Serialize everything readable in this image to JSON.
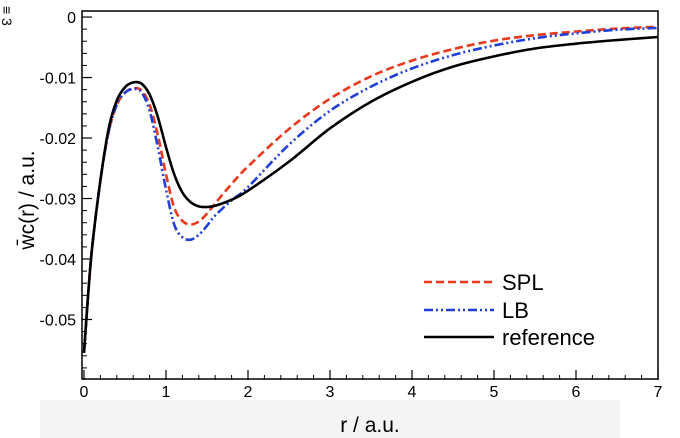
{
  "chart_data": {
    "type": "line",
    "xlabel": "r / a.u.",
    "ylabel": "w̄c(r) / a.u.",
    "xlim": [
      0,
      7
    ],
    "ylim": [
      -0.06,
      0.001
    ],
    "xticks": [
      0,
      1,
      2,
      3,
      4,
      5,
      6,
      7
    ],
    "xtick_labels": [
      "0",
      "1",
      "2",
      "3",
      "4",
      "5",
      "6",
      "7"
    ],
    "yticks": [
      0,
      -0.01,
      -0.02,
      -0.03,
      -0.04,
      -0.05
    ],
    "ytick_labels": [
      "0",
      "-0.01",
      "-0.02",
      "-0.03",
      "-0.04",
      "-0.05"
    ],
    "legend_position": "bottom-right",
    "grid": false,
    "corner_text": "≡ 3",
    "series": [
      {
        "name": "SPL",
        "color": "#e8391c",
        "dash": "dashed",
        "x": [
          0,
          0.05,
          0.1,
          0.2,
          0.3,
          0.4,
          0.5,
          0.6,
          0.7,
          0.8,
          0.9,
          1.0,
          1.1,
          1.2,
          1.3,
          1.4,
          1.5,
          1.6,
          1.8,
          2.0,
          2.5,
          3.0,
          3.5,
          4.0,
          4.5,
          5.0,
          5.5,
          6.0,
          6.5,
          7.0
        ],
        "y": [
          -0.0555,
          -0.046,
          -0.038,
          -0.027,
          -0.019,
          -0.0145,
          -0.0125,
          -0.0118,
          -0.0121,
          -0.0145,
          -0.0195,
          -0.026,
          -0.0315,
          -0.0337,
          -0.0343,
          -0.0338,
          -0.0325,
          -0.0308,
          -0.0276,
          -0.0247,
          -0.0185,
          -0.0135,
          -0.0098,
          -0.0072,
          -0.0053,
          -0.0039,
          -0.003,
          -0.0024,
          -0.0019,
          -0.0016
        ]
      },
      {
        "name": "LB",
        "color": "#1f3fd8",
        "dash": "dash-dot-dot",
        "x": [
          0,
          0.05,
          0.1,
          0.2,
          0.3,
          0.4,
          0.5,
          0.6,
          0.7,
          0.8,
          0.9,
          1.0,
          1.1,
          1.2,
          1.3,
          1.4,
          1.5,
          1.6,
          1.8,
          2.0,
          2.5,
          3.0,
          3.5,
          4.0,
          4.5,
          5.0,
          5.5,
          6.0,
          6.5,
          7.0
        ],
        "y": [
          -0.0555,
          -0.046,
          -0.038,
          -0.027,
          -0.019,
          -0.0145,
          -0.0125,
          -0.0119,
          -0.0124,
          -0.0155,
          -0.0215,
          -0.0285,
          -0.0343,
          -0.0364,
          -0.0368,
          -0.036,
          -0.0345,
          -0.0328,
          -0.0303,
          -0.0281,
          -0.0211,
          -0.0155,
          -0.0115,
          -0.0085,
          -0.0063,
          -0.0047,
          -0.0035,
          -0.0027,
          -0.0021,
          -0.0018
        ]
      },
      {
        "name": "reference",
        "color": "#000000",
        "dash": "solid",
        "x": [
          0,
          0.05,
          0.1,
          0.2,
          0.3,
          0.4,
          0.5,
          0.6,
          0.7,
          0.8,
          0.9,
          1.0,
          1.1,
          1.2,
          1.3,
          1.4,
          1.5,
          1.6,
          1.8,
          2.0,
          2.5,
          3.0,
          3.5,
          4.0,
          4.5,
          5.0,
          5.5,
          6.0,
          6.5,
          7.0
        ],
        "y": [
          -0.0555,
          -0.046,
          -0.038,
          -0.027,
          -0.0185,
          -0.0138,
          -0.0116,
          -0.0108,
          -0.011,
          -0.0128,
          -0.0165,
          -0.0215,
          -0.026,
          -0.029,
          -0.0306,
          -0.0313,
          -0.0314,
          -0.0312,
          -0.0302,
          -0.0287,
          -0.0239,
          -0.0184,
          -0.014,
          -0.0107,
          -0.0082,
          -0.0065,
          -0.0052,
          -0.0044,
          -0.0038,
          -0.0033
        ]
      }
    ]
  }
}
